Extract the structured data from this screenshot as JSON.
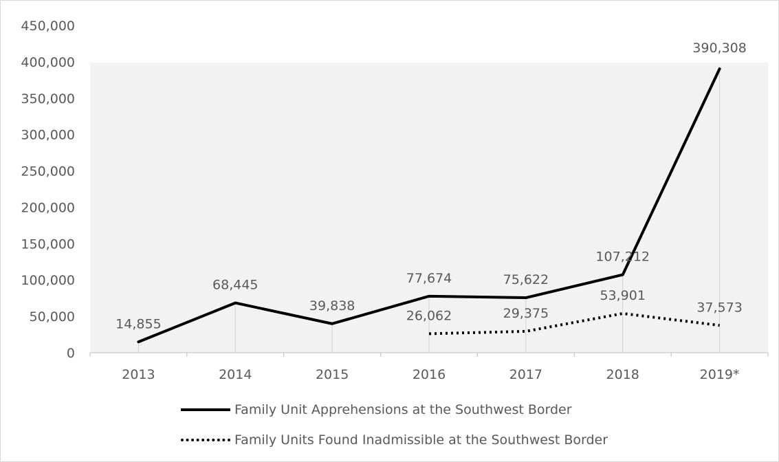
{
  "chart_data": {
    "type": "line",
    "title": "",
    "xlabel": "",
    "ylabel": "",
    "categories": [
      "2013",
      "2014",
      "2015",
      "2016",
      "2017",
      "2018",
      "2019*"
    ],
    "ylim": [
      0,
      450000
    ],
    "yticks": [
      "0",
      "50,000",
      "100,000",
      "150,000",
      "200,000",
      "250,000",
      "300,000",
      "350,000",
      "400,000",
      "450,000"
    ],
    "grid": false,
    "legend_position": "bottom",
    "series": [
      {
        "name": "Family Unit Apprehensions at the Southwest Border",
        "style": "solid",
        "color": "#000000",
        "values": [
          14855,
          68445,
          39838,
          77674,
          75622,
          107212,
          390308
        ],
        "labels": [
          "14,855",
          "68,445",
          "39,838",
          "77,674",
          "75,622",
          "107,212",
          "390,308"
        ]
      },
      {
        "name": "Family Units Found Inadmissible at the Southwest Border",
        "style": "dotted",
        "color": "#000000",
        "values": [
          null,
          null,
          null,
          26062,
          29375,
          53901,
          37573
        ],
        "labels": [
          "",
          "",
          "",
          "26,062",
          "29,375",
          "53,901",
          "37,573"
        ]
      }
    ]
  }
}
